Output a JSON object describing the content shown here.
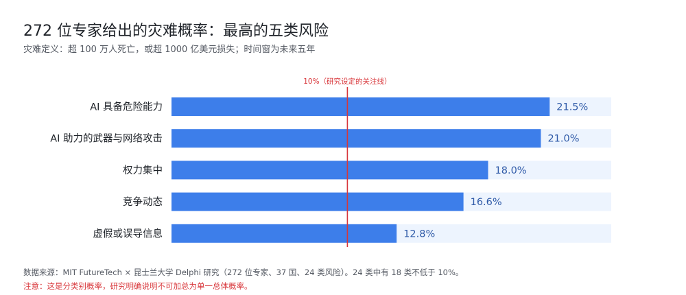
{
  "header": {
    "title": "272 位专家给出的灾难概率：最高的五类风险",
    "subtitle": "灾难定义：超 100 万人死亡，或超 1000 亿美元损失；时间窗为未来五年"
  },
  "footer": {
    "source": "数据来源：MIT FutureTech × 昆士兰大学 Delphi 研究（272 位专家、37 国、24 类风险）。24 类中有 18 类不低于 10%。",
    "note": "注意：这是分类别概率，研究明确说明不可加总为单一总体概率。"
  },
  "colors": {
    "bar": "#3d7eea",
    "track": "#edf4fe",
    "reference": "#d8363a",
    "value_text": "#2f5aa8"
  },
  "chart_data": {
    "type": "bar",
    "orientation": "horizontal",
    "categories": [
      "AI 具备危险能力",
      "AI 助力的武器与网络攻击",
      "权力集中",
      "竞争动态",
      "虚假或误导信息"
    ],
    "values": [
      21.5,
      21.0,
      18.0,
      16.6,
      12.8
    ],
    "value_labels": [
      "21.5%",
      "21.0%",
      "18.0%",
      "16.6%",
      "12.8%"
    ],
    "xlim": [
      0,
      25
    ],
    "reference_line": {
      "value": 10,
      "label": "10%（研究设定的关注线）"
    },
    "grid": false,
    "legend": "none"
  }
}
